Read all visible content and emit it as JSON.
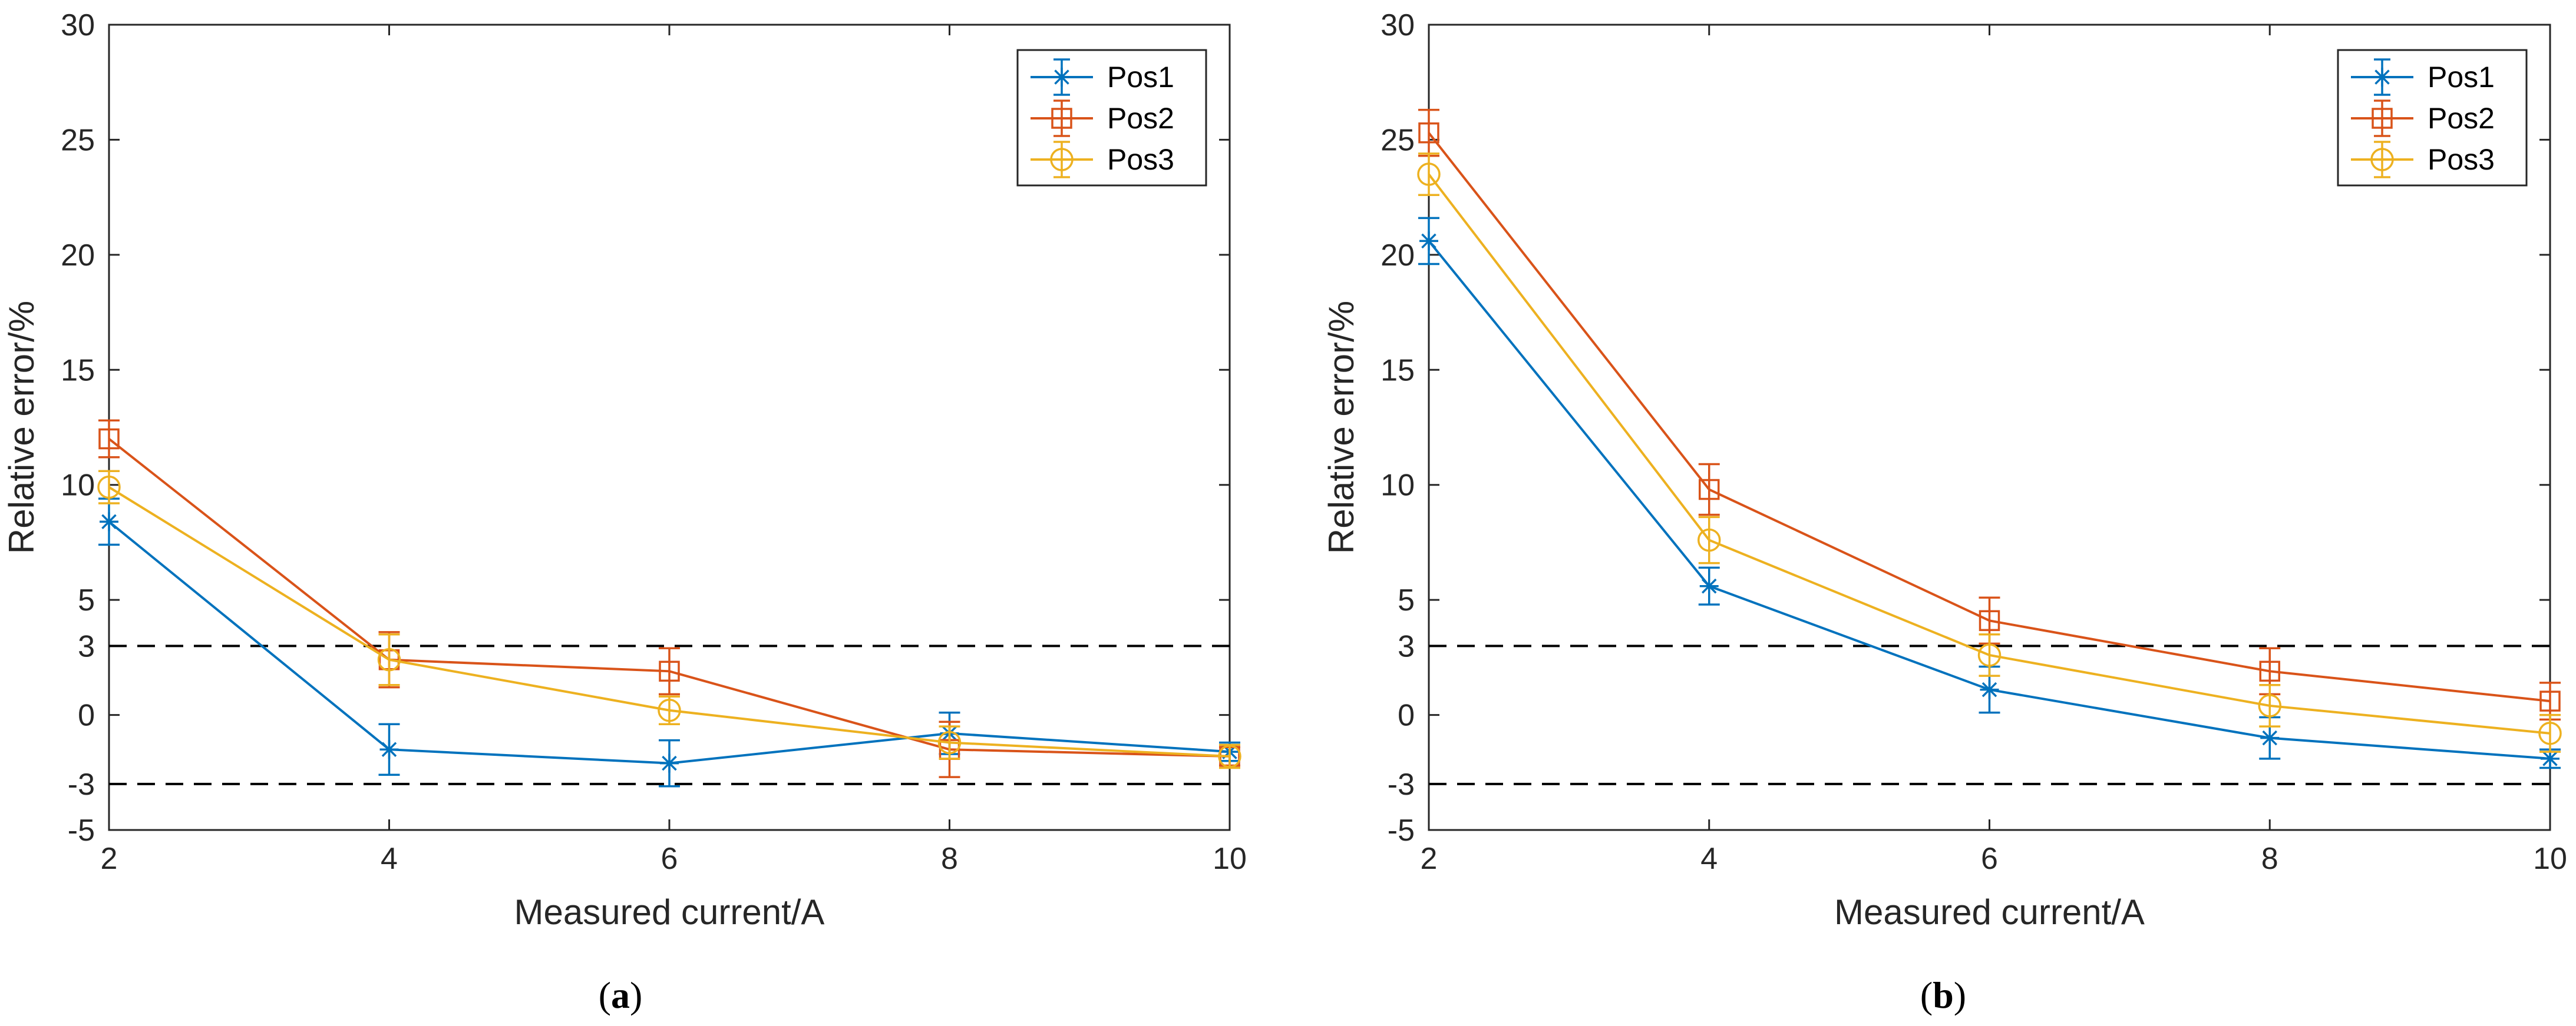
{
  "chart_data": [
    {
      "type": "line",
      "caption_letter": "a",
      "xlabel": "Measured current/A",
      "ylabel": "Relative error/%",
      "xlim": [
        2,
        10
      ],
      "ylim": [
        -5,
        30
      ],
      "xticks": [
        2,
        4,
        6,
        8,
        10
      ],
      "yticks": [
        -5,
        -3,
        0,
        3,
        5,
        10,
        15,
        20,
        25,
        30
      ],
      "reference_lines": [
        3,
        -3
      ],
      "legend_position": "top-right",
      "x": [
        2,
        4,
        6,
        8,
        10
      ],
      "series": [
        {
          "name": "Pos1",
          "marker": "asterisk",
          "color": "#0072BD",
          "values": [
            8.4,
            -1.5,
            -2.1,
            -0.8,
            -1.6
          ],
          "errors": [
            1.0,
            1.1,
            1.0,
            0.9,
            0.4
          ]
        },
        {
          "name": "Pos2",
          "marker": "square",
          "color": "#D95319",
          "values": [
            12.0,
            2.4,
            1.9,
            -1.5,
            -1.8
          ],
          "errors": [
            0.8,
            1.2,
            1.0,
            1.2,
            0.4
          ]
        },
        {
          "name": "Pos3",
          "marker": "circle",
          "color": "#EDB120",
          "values": [
            9.9,
            2.4,
            0.2,
            -1.2,
            -1.8
          ],
          "errors": [
            0.7,
            1.1,
            0.6,
            0.7,
            0.5
          ]
        }
      ]
    },
    {
      "type": "line",
      "caption_letter": "b",
      "xlabel": "Measured current/A",
      "ylabel": "Relative error/%",
      "xlim": [
        2,
        10
      ],
      "ylim": [
        -5,
        30
      ],
      "xticks": [
        2,
        4,
        6,
        8,
        10
      ],
      "yticks": [
        -5,
        -3,
        0,
        3,
        5,
        10,
        15,
        20,
        25,
        30
      ],
      "reference_lines": [
        3,
        -3
      ],
      "legend_position": "top-right",
      "x": [
        2,
        4,
        6,
        8,
        10
      ],
      "series": [
        {
          "name": "Pos1",
          "marker": "asterisk",
          "color": "#0072BD",
          "values": [
            20.6,
            5.6,
            1.1,
            -1.0,
            -1.9
          ],
          "errors": [
            1.0,
            0.8,
            1.0,
            0.9,
            0.4
          ]
        },
        {
          "name": "Pos2",
          "marker": "square",
          "color": "#D95319",
          "values": [
            25.3,
            9.8,
            4.1,
            1.9,
            0.6
          ],
          "errors": [
            1.0,
            1.1,
            1.0,
            1.0,
            0.8
          ]
        },
        {
          "name": "Pos3",
          "marker": "circle",
          "color": "#EDB120",
          "values": [
            23.5,
            7.6,
            2.6,
            0.4,
            -0.8
          ],
          "errors": [
            0.9,
            1.0,
            0.9,
            0.9,
            0.8
          ]
        }
      ]
    }
  ]
}
